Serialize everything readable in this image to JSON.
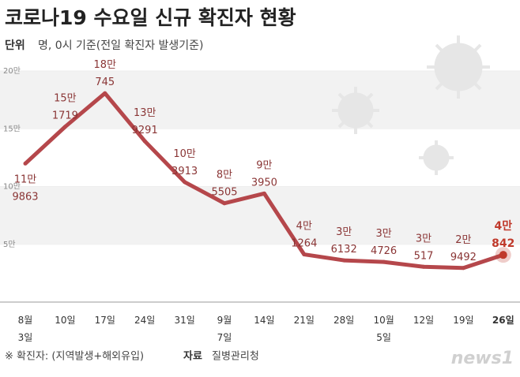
{
  "chart_data": {
    "type": "line",
    "title": "코로나19 수요일 신규 확진자 현황",
    "unit_label": "단위",
    "subtitle": "명, 0시 기준(전일 확진자 발생기준)",
    "note": "※ 확진자: (지역발생+해외유입)",
    "source_label": "자료",
    "source": "질병관리청",
    "logo": "news1",
    "categories": [
      "8월\n3일",
      "10일",
      "17일",
      "24일",
      "31일",
      "9월\n7일",
      "14일",
      "21일",
      "28일",
      "10월\n5일",
      "12일",
      "19일",
      "26일"
    ],
    "series": [
      {
        "color": "#b5474b",
        "values": [
          119863,
          151719,
          180745,
          139291,
          103913,
          85505,
          93950,
          41264,
          36132,
          34726,
          30517,
          29492,
          40842
        ],
        "value_labels": [
          "11만\n9863",
          "15만\n1719",
          "18만\n745",
          "13만\n9291",
          "10만\n3913",
          "8만\n5505",
          "9만\n3950",
          "4만\n1264",
          "3만\n6132",
          "3만\n4726",
          "3만\n517",
          "2만\n9492",
          "4만\n842"
        ]
      }
    ],
    "ylim": [
      0,
      200000
    ],
    "yticks": [
      {
        "value": 50000,
        "label": "5만"
      },
      {
        "value": 100000,
        "label": "10만"
      },
      {
        "value": 150000,
        "label": "15만"
      },
      {
        "value": 200000,
        "label": "20만"
      }
    ],
    "highlight_color": "#c0392b"
  }
}
